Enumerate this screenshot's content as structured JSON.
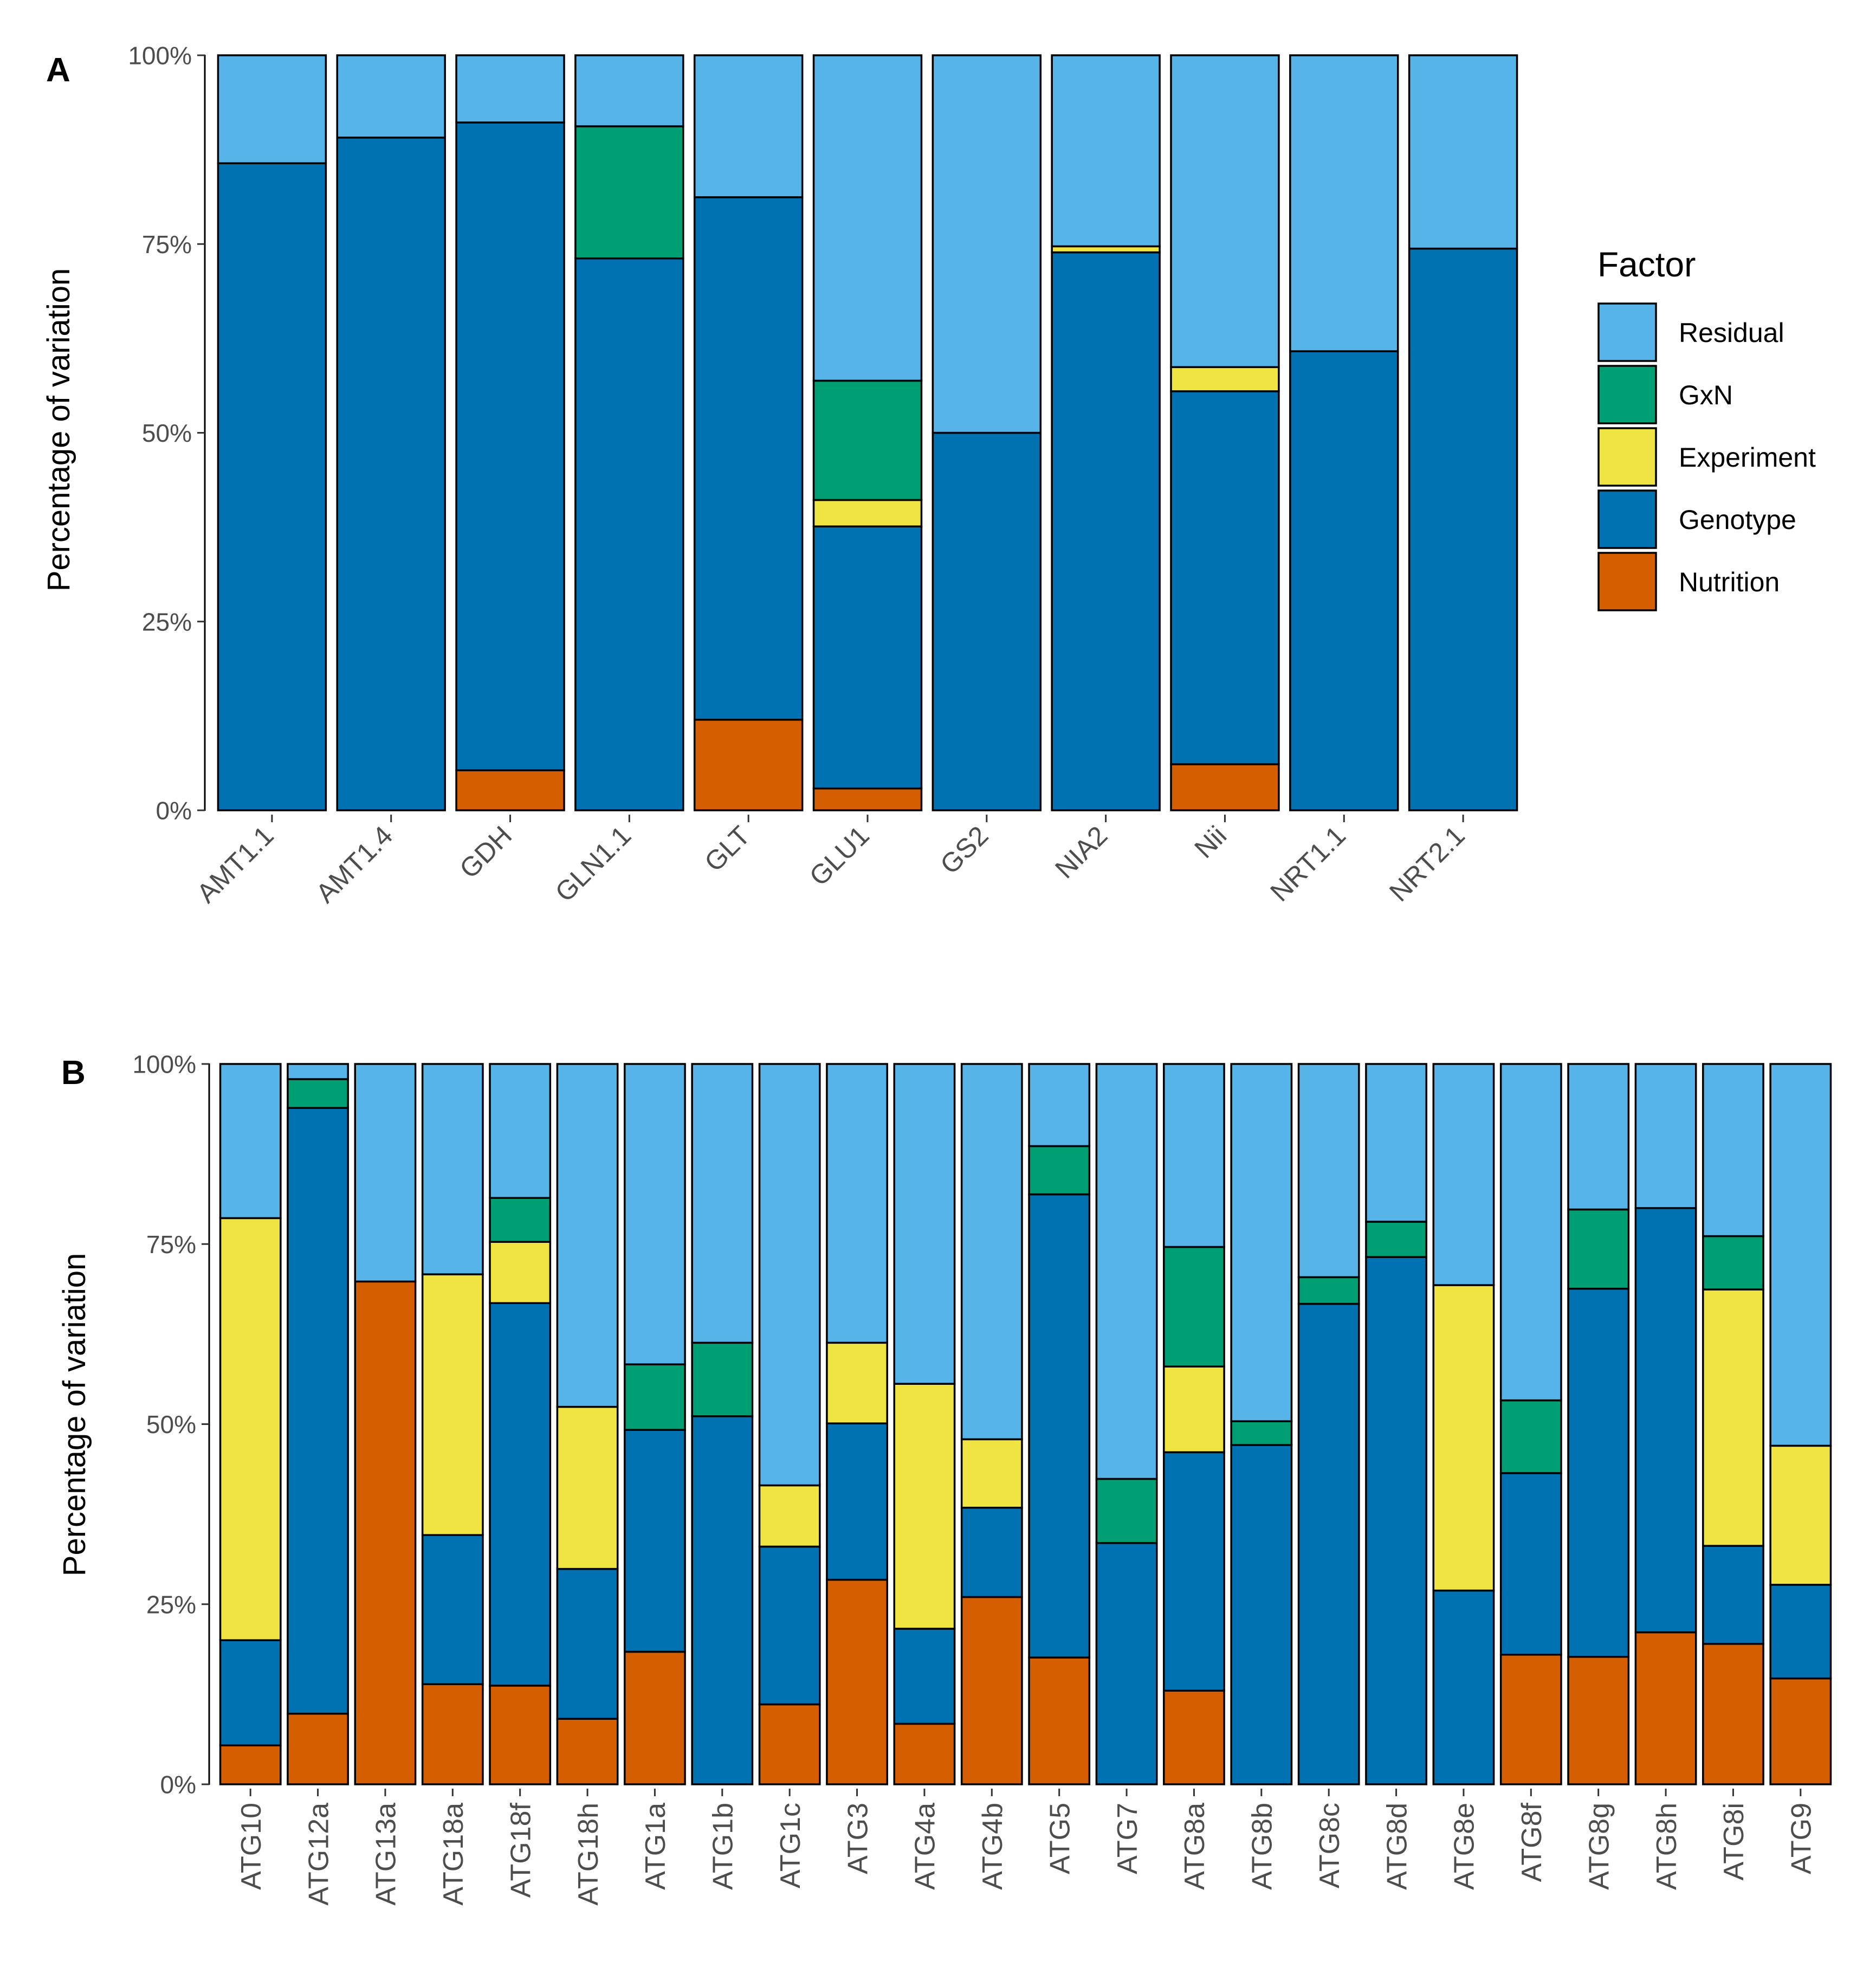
{
  "legend": {
    "title": "Factor",
    "items": [
      {
        "key": "Residual",
        "label": "Residual",
        "color": "#56B4E9"
      },
      {
        "key": "GxN",
        "label": "GxN",
        "color": "#009E73"
      },
      {
        "key": "Experiment",
        "label": "Experiment",
        "color": "#F0E442"
      },
      {
        "key": "Genotype",
        "label": "Genotype",
        "color": "#0072B2"
      },
      {
        "key": "Nutrition",
        "label": "Nutrition",
        "color": "#D55E00"
      }
    ]
  },
  "chart_data": [
    {
      "panel": "A",
      "type": "bar",
      "stacked": true,
      "ylabel": "Percentage of variation",
      "ylim": [
        0,
        100
      ],
      "yticks": [
        "0%",
        "25%",
        "50%",
        "75%",
        "100%"
      ],
      "categories": [
        "AMT1.1",
        "AMT1.4",
        "GDH",
        "GLN1.1",
        "GLT",
        "GLU1",
        "GS2",
        "NIA2",
        "Nii",
        "NRT1.1",
        "NRT2.1"
      ],
      "stack_order": [
        "Nutrition",
        "Genotype",
        "Experiment",
        "GxN",
        "Residual"
      ],
      "series": [
        {
          "name": "Nutrition",
          "values": [
            0,
            0,
            5.3,
            0,
            12,
            2.9,
            0,
            0,
            6.1,
            0,
            0
          ]
        },
        {
          "name": "Genotype",
          "values": [
            85.7,
            89.1,
            85.8,
            73.1,
            69.2,
            34.7,
            50,
            73.9,
            49.4,
            60.8,
            74.4
          ]
        },
        {
          "name": "Experiment",
          "values": [
            0,
            0,
            0,
            0,
            0,
            3.5,
            0,
            0.8,
            3.2,
            0,
            0
          ]
        },
        {
          "name": "GxN",
          "values": [
            0,
            0,
            0,
            17.5,
            0,
            15.8,
            0,
            0,
            0,
            0,
            0
          ]
        },
        {
          "name": "Residual",
          "values": [
            14.3,
            10.9,
            8.9,
            9.4,
            18.8,
            43.1,
            50,
            25.3,
            41.3,
            39.2,
            25.6
          ]
        }
      ]
    },
    {
      "panel": "B",
      "type": "bar",
      "stacked": true,
      "ylabel": "Percentage of variation",
      "ylim": [
        0,
        100
      ],
      "yticks": [
        "0%",
        "25%",
        "50%",
        "75%",
        "100%"
      ],
      "categories": [
        "ATG10",
        "ATG12a",
        "ATG13a",
        "ATG18a",
        "ATG18f",
        "ATG18h",
        "ATG1a",
        "ATG1b",
        "ATG1c",
        "ATG3",
        "ATG4a",
        "ATG4b",
        "ATG5",
        "ATG7",
        "ATG8a",
        "ATG8b",
        "ATG8c",
        "ATG8d",
        "ATG8e",
        "ATG8f",
        "ATG8g",
        "ATG8h",
        "ATG8i",
        "ATG9"
      ],
      "stack_order": [
        "Nutrition",
        "Genotype",
        "Experiment",
        "GxN",
        "Residual"
      ],
      "series": [
        {
          "name": "Nutrition",
          "values": [
            5.4,
            9.8,
            69.8,
            13.9,
            13.7,
            9.1,
            18.4,
            0,
            11.1,
            28.4,
            8.4,
            26,
            17.6,
            0,
            13,
            0,
            0,
            0,
            0,
            18,
            17.7,
            21.1,
            19.5,
            14.7
          ]
        },
        {
          "name": "Genotype",
          "values": [
            14.6,
            84.1,
            0,
            20.7,
            53.1,
            20.8,
            30.8,
            51.1,
            21.9,
            21.7,
            13.2,
            12.4,
            64.3,
            33.5,
            33.1,
            47.1,
            66.7,
            73.2,
            26.9,
            25.2,
            51.1,
            58.9,
            13.6,
            13
          ]
        },
        {
          "name": "Experiment",
          "values": [
            58.6,
            0,
            0,
            36.2,
            8.5,
            22.5,
            0,
            0,
            8.5,
            11.2,
            34,
            9.5,
            0,
            0,
            11.9,
            0,
            0,
            0,
            42.4,
            0,
            0,
            0,
            35.6,
            19.3
          ]
        },
        {
          "name": "GxN",
          "values": [
            0,
            4,
            0,
            0,
            6.1,
            0,
            9.1,
            10.2,
            0,
            0,
            0,
            0,
            6.7,
            8.9,
            16.6,
            3.3,
            3.7,
            4.9,
            0,
            10.1,
            11,
            0,
            7.4,
            0
          ]
        },
        {
          "name": "Residual",
          "values": [
            21.4,
            2.1,
            30.2,
            29.2,
            18.6,
            47.6,
            41.7,
            38.7,
            58.5,
            38.7,
            44.4,
            52.1,
            11.4,
            57.6,
            25.4,
            49.6,
            29.6,
            21.9,
            30.7,
            46.7,
            20.2,
            20,
            23.9,
            53
          ]
        }
      ]
    }
  ]
}
